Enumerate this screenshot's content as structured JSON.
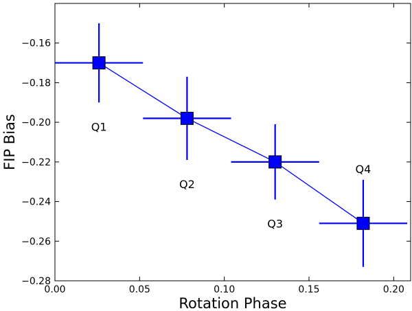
{
  "chart_data": {
    "type": "scatter",
    "title": "",
    "xlabel": "Rotation Phase",
    "ylabel": "FIP Bias",
    "xlim": [
      0.0,
      0.21
    ],
    "ylim": [
      -0.28,
      -0.14
    ],
    "grid": false,
    "x_ticks": [
      "0.00",
      "0.05",
      "0.10",
      "0.15",
      "0.20"
    ],
    "y_ticks": [
      "-0.16",
      "-0.18",
      "-0.20",
      "-0.22",
      "-0.24",
      "-0.26",
      "-0.28"
    ],
    "series": [
      {
        "name": "FIP Bias",
        "color": "#0000ff",
        "connect_line": true,
        "marker": "square",
        "points": [
          {
            "label": "Q1",
            "x": 0.026,
            "y": -0.17,
            "xerr": 0.026,
            "yerr": 0.02,
            "label_position": "below"
          },
          {
            "label": "Q2",
            "x": 0.078,
            "y": -0.198,
            "xerr": 0.026,
            "yerr": 0.021,
            "label_position": "below"
          },
          {
            "label": "Q3",
            "x": 0.13,
            "y": -0.22,
            "xerr": 0.026,
            "yerr": 0.019,
            "label_position": "below"
          },
          {
            "label": "Q4",
            "x": 0.182,
            "y": -0.251,
            "xerr": 0.026,
            "yerr": 0.022,
            "label_position": "above"
          }
        ]
      }
    ]
  }
}
